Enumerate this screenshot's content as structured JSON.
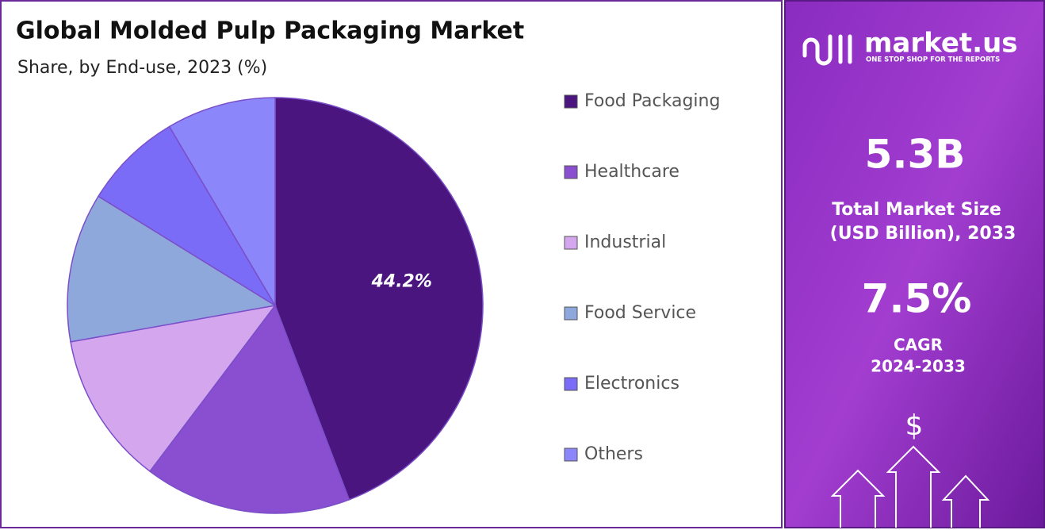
{
  "chart_data": {
    "type": "pie",
    "title": "Global Molded Pulp Packaging Market",
    "subtitle": "Share, by End-use, 2023 (%)",
    "categories": [
      "Food Packaging",
      "Healthcare",
      "Industrial",
      "Food Service",
      "Electronics",
      "Others"
    ],
    "values": [
      44.2,
      16.1,
      11.9,
      11.6,
      7.7,
      8.5
    ],
    "value_labels": [
      "44.2%",
      null,
      null,
      null,
      null,
      null
    ],
    "colors": [
      "#4b1580",
      "#8a4fd0",
      "#d4a6ee",
      "#8fa8dc",
      "#7a6cf7",
      "#8b86fa"
    ]
  },
  "panel": {
    "brand": "market.us",
    "tagline": "ONE STOP SHOP FOR THE REPORTS",
    "market_size": "5.3B",
    "market_size_label": [
      "Total Market Size",
      "(USD Billion), 2033"
    ],
    "cagr": "7.5%",
    "cagr_label": [
      "CAGR",
      "2024-2033"
    ],
    "currency": "$"
  }
}
